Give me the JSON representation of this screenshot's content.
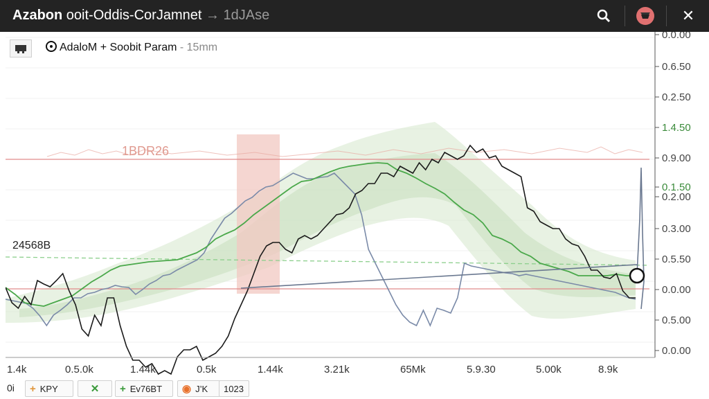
{
  "window": {
    "title_bold": "Azabon",
    "title_main": "ooit-Oddis-CorJamnet",
    "title_suffix": "→ 1dJAse",
    "icons": [
      "search-icon",
      "ninja-avatar-icon",
      "close-icon"
    ],
    "close_glyph": "✕"
  },
  "legend": {
    "label": "AdaloM + Soobit Param",
    "suffix": "- 15mm"
  },
  "annotations": {
    "left_value": "24568B",
    "top_label": "1BDR26"
  },
  "bottom_bar": {
    "left_text": "0i",
    "items": [
      {
        "icon": "+",
        "label": "KPY",
        "icon_name": "plus-icon"
      },
      {
        "icon": "✕",
        "label": "",
        "icon_name": "cross-icon"
      },
      {
        "icon": "+",
        "label": "Ev76BT",
        "icon_name": "plus-icon"
      },
      {
        "icon": "◉",
        "label": "J’K",
        "icon_name": "target-icon"
      },
      {
        "icon": "",
        "label": "1023",
        "icon_name": ""
      }
    ]
  },
  "colors": {
    "titlebar": "#232323",
    "price_line": "#1a1a1a",
    "green_line": "#4aa84a",
    "blue_line": "#7a8aa8",
    "band_fill": "#d8ead0",
    "red_line": "#e08a8a",
    "highlight": "#f2c8c2"
  },
  "chart_data": {
    "type": "line",
    "x_tick_labels": [
      "1.4k",
      "0.5.0k",
      "1.44k",
      "0.5k",
      "1.44k",
      "3.21k",
      "65Mk",
      "5.9.30",
      "5.00k",
      "8.9k"
    ],
    "y_tick_labels": [
      "0.0.00",
      "0.6.50",
      "0.2.50",
      "1.4.50",
      "0.9.00",
      "0.1.50",
      "0.2.00",
      "0.3.00",
      "0.5.50",
      "0.0.00",
      "0.5.00",
      "0.0.00"
    ],
    "series": [
      {
        "key": "price",
        "values": [
          415,
          437,
          445,
          428,
          440,
          405,
          410,
          414,
          405,
          395,
          420,
          440,
          475,
          485,
          455,
          470,
          430,
          430,
          470,
          500,
          520,
          520,
          530,
          525,
          540,
          535,
          540,
          515,
          505,
          505,
          500,
          520,
          515,
          510,
          500,
          485,
          460,
          440,
          420,
          395,
          370,
          355,
          350,
          350,
          360,
          365,
          345,
          340,
          345,
          340,
          330,
          320,
          310,
          308,
          300,
          280,
          275,
          265,
          265,
          250,
          250,
          255,
          240,
          245,
          250,
          235,
          245,
          230,
          235,
          220,
          225,
          230,
          225,
          210,
          220,
          215,
          228,
          225,
          240,
          245,
          250,
          255,
          300,
          305,
          320,
          325,
          330,
          330,
          345,
          352,
          355,
          370,
          390,
          390,
          400,
          402,
          395,
          420,
          430,
          430
        ]
      },
      {
        "key": "green",
        "values": [
          415,
          425,
          437,
          440,
          442,
          437,
          432,
          427,
          417,
          407,
          399,
          390,
          384,
          382,
          380,
          378,
          377,
          376,
          375,
          370,
          365,
          357,
          345,
          338,
          332,
          322,
          310,
          300,
          290,
          280,
          270,
          262,
          260,
          254,
          248,
          243,
          240,
          238,
          236,
          235,
          236,
          245,
          250,
          257,
          265,
          272,
          280,
          292,
          303,
          310,
          322,
          340,
          345,
          352,
          364,
          370,
          380,
          384,
          388,
          392,
          398,
          398,
          398,
          398,
          396,
          398,
          398
        ]
      },
      {
        "key": "blue",
        "values": [
          432,
          434,
          436,
          438,
          445,
          456,
          470,
          455,
          448,
          440,
          430,
          430,
          424,
          422,
          418,
          416,
          412,
          414,
          415,
          425,
          418,
          410,
          405,
          398,
          396,
          390,
          385,
          380,
          375,
          365,
          345,
          330,
          315,
          308,
          299,
          290,
          285,
          276,
          270,
          268,
          262,
          256,
          250,
          254,
          258,
          258,
          256,
          255,
          250,
          260,
          270,
          280,
          310,
          360,
          380,
          400,
          420,
          440,
          455,
          465,
          470,
          448,
          470,
          445,
          448,
          452,
          430,
          380,
          384,
          386,
          388,
          390,
          392,
          394,
          395,
          398,
          396,
          398,
          400,
          402,
          404,
          406,
          408,
          410,
          412,
          414,
          416,
          418,
          420,
          422,
          426,
          430,
          432
        ]
      }
    ]
  }
}
